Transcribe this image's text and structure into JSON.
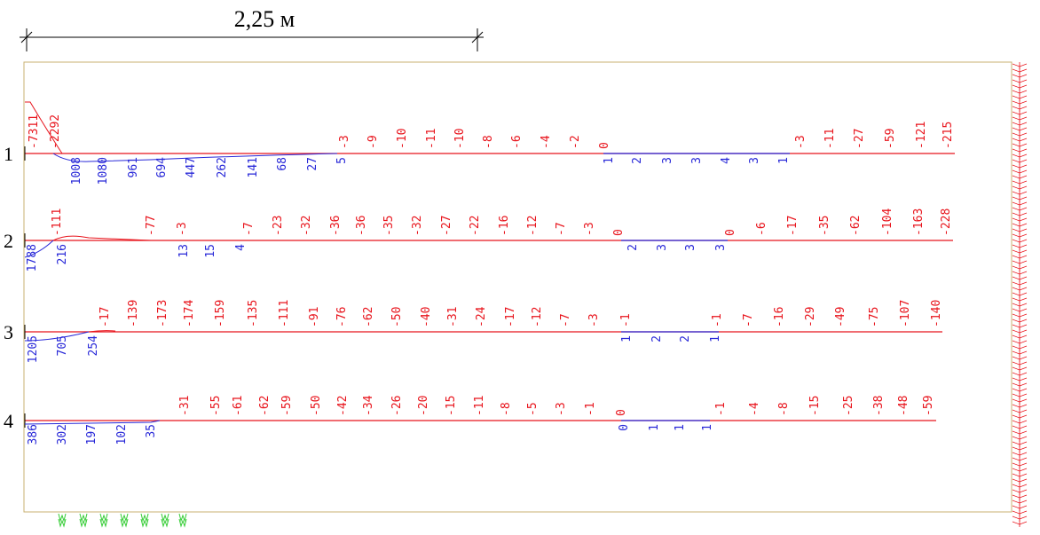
{
  "scale": {
    "label": "2,25 м"
  },
  "rows": [
    {
      "label": "1",
      "above": [
        "-7311",
        "-2292",
        "-3",
        "-9",
        "-10",
        "-11",
        "-10",
        "-8",
        "-6",
        "-4",
        "-2",
        "0",
        "-3",
        "-11",
        "-27",
        "-59",
        "-121",
        "-215"
      ],
      "below": [
        "1008",
        "1080",
        "961",
        "694",
        "447",
        "262",
        "141",
        "68",
        "27",
        "5",
        "1",
        "2",
        "3",
        "3",
        "4",
        "3",
        "1"
      ]
    },
    {
      "label": "2",
      "above": [
        "-111",
        "-77",
        "-3",
        "-7",
        "-23",
        "-32",
        "-36",
        "-36",
        "-35",
        "-32",
        "-27",
        "-22",
        "-16",
        "-12",
        "-7",
        "-3",
        "0",
        "0",
        "-6",
        "-17",
        "-35",
        "-62",
        "-104",
        "-163",
        "-228"
      ],
      "below": [
        "1788",
        "216",
        "13",
        "15",
        "4",
        "2",
        "3",
        "3",
        "3"
      ]
    },
    {
      "label": "3",
      "above": [
        "-17",
        "-139",
        "-173",
        "-174",
        "-159",
        "-135",
        "-111",
        "-91",
        "-76",
        "-62",
        "-50",
        "-40",
        "-31",
        "-24",
        "-17",
        "-12",
        "-7",
        "-3",
        "-1",
        "-1",
        "-7",
        "-16",
        "-29",
        "-49",
        "-75",
        "-107",
        "-140"
      ],
      "below": [
        "1205",
        "705",
        "254",
        "1",
        "2",
        "2",
        "1"
      ]
    },
    {
      "label": "4",
      "above": [
        "-31",
        "-55",
        "-61",
        "-62",
        "-59",
        "-50",
        "-42",
        "-34",
        "-26",
        "-20",
        "-15",
        "-11",
        "-8",
        "-5",
        "-3",
        "-1",
        "0",
        "-1",
        "-4",
        "-8",
        "-15",
        "-25",
        "-38",
        "-48",
        "-59"
      ],
      "below": [
        "386",
        "302",
        "197",
        "102",
        "35",
        "0",
        "1",
        "1",
        "1"
      ]
    }
  ]
}
